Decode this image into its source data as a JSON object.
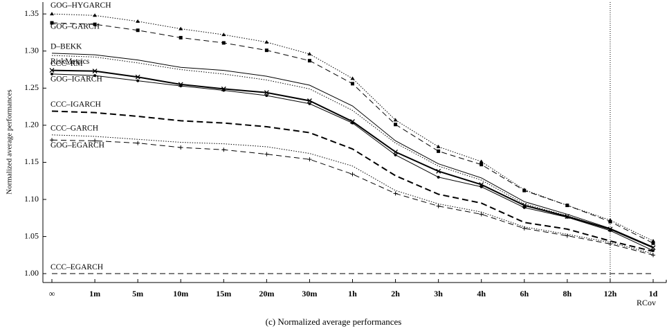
{
  "chart_data": {
    "type": "line",
    "title": "(c) Normalized average performances",
    "y_label": "Normalized average performances",
    "categories": [
      "∞",
      "1m",
      "5m",
      "10m",
      "15m",
      "20m",
      "30m",
      "1h",
      "2h",
      "3h",
      "4h",
      "6h",
      "8h",
      "12h",
      "1d"
    ],
    "x_annotation": "RCov",
    "vline_at": "12h",
    "ylim": [
      0.988,
      1.366
    ],
    "yticks": [
      {
        "value": 1.0,
        "label": "1.00"
      },
      1.05,
      {
        "value": 1.1,
        "label": "1.10"
      },
      1.15,
      {
        "value": 1.2,
        "label": "1.20"
      },
      1.25,
      {
        "value": 1.3,
        "label": "1.30"
      },
      1.35
    ],
    "series": [
      {
        "name": "GOG–HYGARCH",
        "color": "#000000",
        "style": "dotted",
        "marker": "triangle",
        "values": [
          1.35,
          1.348,
          1.34,
          1.33,
          1.322,
          1.312,
          1.296,
          1.263,
          1.207,
          1.171,
          1.151,
          1.113,
          1.092,
          1.072,
          1.044
        ]
      },
      {
        "name": "GOG–GARCH",
        "color": "#000000",
        "style": "dashed",
        "marker": "square",
        "values": [
          1.338,
          1.336,
          1.328,
          1.318,
          1.311,
          1.301,
          1.287,
          1.256,
          1.201,
          1.165,
          1.147,
          1.112,
          1.092,
          1.07,
          1.041
        ]
      },
      {
        "name": "D–BEKK",
        "color": "#000000",
        "style": "solid",
        "marker": "none",
        "values": [
          1.297,
          1.295,
          1.288,
          1.278,
          1.274,
          1.266,
          1.254,
          1.226,
          1.179,
          1.148,
          1.129,
          1.097,
          1.08,
          1.061,
          1.036
        ]
      },
      {
        "name": "RiskMetrics",
        "color": "#000000",
        "style": "dotted",
        "marker": "none",
        "values": [
          1.294,
          1.292,
          1.284,
          1.275,
          1.269,
          1.261,
          1.249,
          1.22,
          1.176,
          1.145,
          1.126,
          1.094,
          1.078,
          1.06,
          1.035
        ]
      },
      {
        "name": "CCC–RM",
        "color": "#000000",
        "style": "thick",
        "marker": "x",
        "values": [
          1.274,
          1.273,
          1.265,
          1.255,
          1.249,
          1.244,
          1.233,
          1.205,
          1.164,
          1.138,
          1.12,
          1.092,
          1.077,
          1.06,
          1.035
        ]
      },
      {
        "name": "GOG–IGARCH",
        "color": "#000000",
        "style": "solid",
        "marker": "dot",
        "values": [
          1.269,
          1.267,
          1.26,
          1.253,
          1.247,
          1.24,
          1.229,
          1.203,
          1.16,
          1.13,
          1.117,
          1.089,
          1.076,
          1.058,
          1.031
        ]
      },
      {
        "name": "CCC–IGARCH",
        "color": "#000000",
        "style": "thickdashed",
        "marker": "none",
        "values": [
          1.219,
          1.217,
          1.212,
          1.206,
          1.203,
          1.198,
          1.19,
          1.168,
          1.132,
          1.107,
          1.095,
          1.069,
          1.06,
          1.044,
          1.03
        ]
      },
      {
        "name": "CCC–GARCH",
        "color": "#000000",
        "style": "dotted",
        "marker": "none",
        "values": [
          1.187,
          1.185,
          1.181,
          1.177,
          1.175,
          1.171,
          1.162,
          1.145,
          1.112,
          1.094,
          1.083,
          1.063,
          1.053,
          1.042,
          1.027
        ]
      },
      {
        "name": "GOG–EGARCH",
        "color": "#000000",
        "style": "dashed",
        "marker": "plus",
        "values": [
          1.18,
          1.179,
          1.176,
          1.17,
          1.167,
          1.161,
          1.154,
          1.134,
          1.108,
          1.091,
          1.08,
          1.061,
          1.051,
          1.04,
          1.025
        ]
      },
      {
        "name": "CCC–EGARCH",
        "color": "#000000",
        "style": "dashed",
        "marker": "none",
        "values": [
          1.0,
          1.0,
          1.0,
          1.0,
          1.0,
          1.0,
          1.0,
          1.0,
          1.0,
          1.0,
          1.0,
          1.0,
          1.0,
          1.0,
          1.0
        ]
      }
    ]
  }
}
